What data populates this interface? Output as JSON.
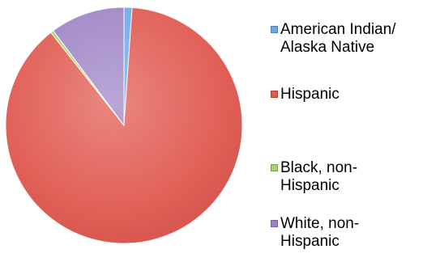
{
  "chart_data": {
    "type": "pie",
    "title": "",
    "start_angle_deg": 0,
    "direction": "clockwise",
    "legend_position": "right",
    "series": [
      {
        "name": "American Indian/\nAlaska Native",
        "value": 1.1,
        "color": "#6fa8e8"
      },
      {
        "name": "Hispanic",
        "value": 88.3,
        "color": "#e0594f"
      },
      {
        "name": "Black, non-\nHispanic",
        "value": 0.4,
        "color": "#a9d36b"
      },
      {
        "name": "White, non-\nHispanic",
        "value": 10.2,
        "color": "#9e84c6"
      }
    ]
  }
}
